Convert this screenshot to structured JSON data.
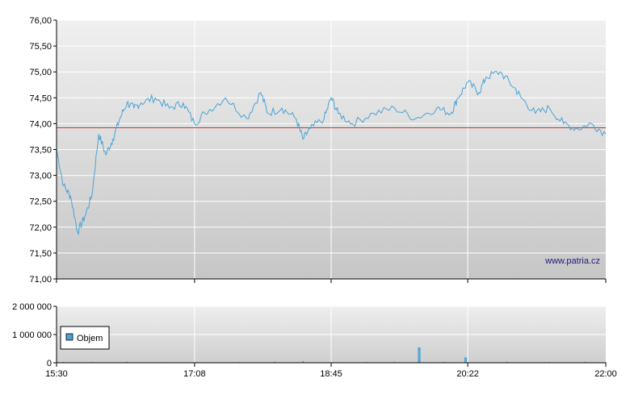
{
  "watermark": "www.patria.cz",
  "colors": {
    "line": "#4aa3d4",
    "reference": "#cc3333",
    "volume": "#4aa3d4",
    "plot_bg_top": "#f0f0f0",
    "plot_bg_bottom": "#c8c8c8",
    "grid": "#ffffff",
    "axis": "#000000"
  },
  "chart_data": [
    {
      "type": "line",
      "title": "",
      "xlabel": "",
      "ylabel": "",
      "ylim": [
        71.0,
        76.0
      ],
      "y_ticks": [
        "76,00",
        "75,50",
        "75,00",
        "74,50",
        "74,00",
        "73,50",
        "73,00",
        "72,50",
        "72,00",
        "71,50",
        "71,00"
      ],
      "x_range": [
        "15:30",
        "22:00"
      ],
      "reference_line": 73.92,
      "grid": true,
      "series": [
        {
          "x": [
            "15:30",
            "15:35",
            "15:40",
            "15:45",
            "15:50",
            "15:55",
            "16:00",
            "16:05",
            "16:10",
            "16:15",
            "16:20",
            "16:25",
            "16:30",
            "16:40",
            "16:50",
            "17:00",
            "17:08",
            "17:15",
            "17:30",
            "17:45",
            "17:55",
            "18:00",
            "18:10",
            "18:20",
            "18:25",
            "18:30",
            "18:40",
            "18:45",
            "18:50",
            "19:00",
            "19:15",
            "19:30",
            "19:45",
            "20:00",
            "20:10",
            "20:15",
            "20:22",
            "20:30",
            "20:35",
            "20:45",
            "20:55",
            "21:00",
            "21:10",
            "21:20",
            "21:30",
            "21:40",
            "21:50",
            "22:00"
          ],
          "y": [
            73.5,
            72.8,
            72.6,
            71.9,
            72.2,
            72.6,
            73.8,
            73.4,
            73.7,
            74.1,
            74.4,
            74.3,
            74.4,
            74.5,
            74.3,
            74.4,
            74.0,
            74.2,
            74.5,
            74.1,
            74.6,
            74.2,
            74.3,
            74.1,
            73.7,
            73.9,
            74.1,
            74.5,
            74.2,
            74.0,
            74.2,
            74.3,
            74.1,
            74.3,
            74.2,
            74.5,
            74.8,
            74.6,
            74.9,
            75.0,
            74.7,
            74.5,
            74.2,
            74.3,
            74.0,
            73.9,
            74.0,
            73.8
          ]
        }
      ]
    },
    {
      "type": "bar",
      "title": "",
      "xlabel": "",
      "ylabel": "",
      "ylim": [
        0,
        2000000
      ],
      "y_ticks": [
        "2 000 000",
        "1 000 000",
        "0"
      ],
      "x_ticks": [
        "15:30",
        "17:08",
        "18:45",
        "20:22",
        "22:00"
      ],
      "x_range": [
        "15:30",
        "22:00"
      ],
      "grid": true,
      "legend": {
        "label": "Objem",
        "placement": "left"
      },
      "series": [
        {
          "name": "Objem",
          "x": [
            "15:35",
            "15:55",
            "16:20",
            "16:45",
            "17:10",
            "17:40",
            "18:05",
            "18:25",
            "18:50",
            "19:10",
            "19:30",
            "19:47",
            "19:48",
            "20:05",
            "20:20",
            "20:21",
            "20:50",
            "21:20",
            "21:45",
            "22:00"
          ],
          "y": [
            30000,
            25000,
            40000,
            20000,
            30000,
            25000,
            40000,
            60000,
            20000,
            25000,
            30000,
            550000,
            540000,
            30000,
            200000,
            180000,
            40000,
            25000,
            30000,
            20000
          ]
        }
      ]
    }
  ]
}
